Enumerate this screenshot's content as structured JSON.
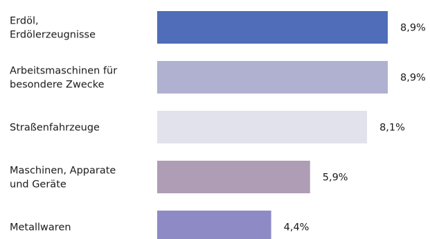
{
  "chart_data": {
    "type": "bar",
    "orientation": "horizontal",
    "categories": [
      [
        "Erdöl,",
        "Erdölerzeugnisse"
      ],
      [
        "Arbeitsmaschinen für",
        "besondere Zwecke"
      ],
      [
        "Straßenfahrzeuge"
      ],
      [
        "Maschinen, Apparate",
        "und Geräte"
      ],
      [
        "Metallwaren"
      ]
    ],
    "values": [
      8.9,
      8.9,
      8.1,
      5.9,
      4.4
    ],
    "value_labels": [
      "8,9%",
      "8,9%",
      "8,1%",
      "5,9%",
      "4,4%"
    ],
    "bar_colors": [
      "#4f6db8",
      "#b0b0d0",
      "#e2e2ec",
      "#ae9db4",
      "#8e8ac6"
    ],
    "xlim": [
      0,
      8.9
    ],
    "grid": false,
    "legend": "none"
  }
}
